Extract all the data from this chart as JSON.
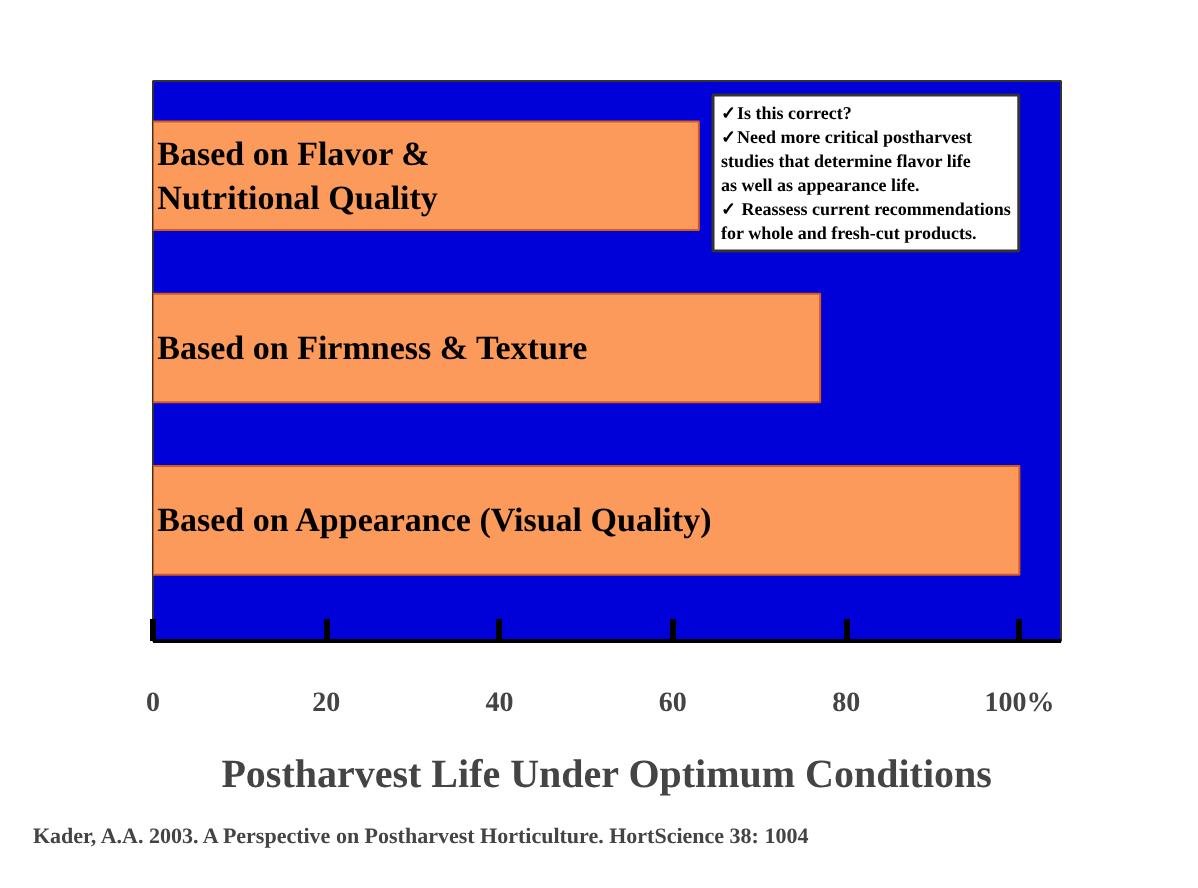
{
  "chart_data": {
    "type": "bar",
    "orientation": "horizontal",
    "categories": [
      "Based on Flavor & Nutritional Quality",
      "Based on Firmness & Texture",
      "Based on Appearance (Visual Quality)"
    ],
    "values": [
      63,
      77,
      100
    ],
    "color": "#fb9a5a",
    "xlim": [
      0,
      104.8
    ],
    "xticks": [
      0,
      20,
      40,
      60,
      80,
      {
        "value": 100,
        "label": "100%"
      }
    ],
    "xlabel": "Postharvest Life Under Optimum Conditions",
    "annotations": [
      "✓Is this correct?",
      "✓Need more critical postharvest studies that determine flavor life as well as appearance life.",
      "✓ Reassess current recommendations for whole and fresh-cut products.",
      "Kader, A.A. 2003. A Perspective on Postharvest Horticulture. HortScience 38: 1004"
    ],
    "grid": false,
    "tick_labels": "x"
  }
}
